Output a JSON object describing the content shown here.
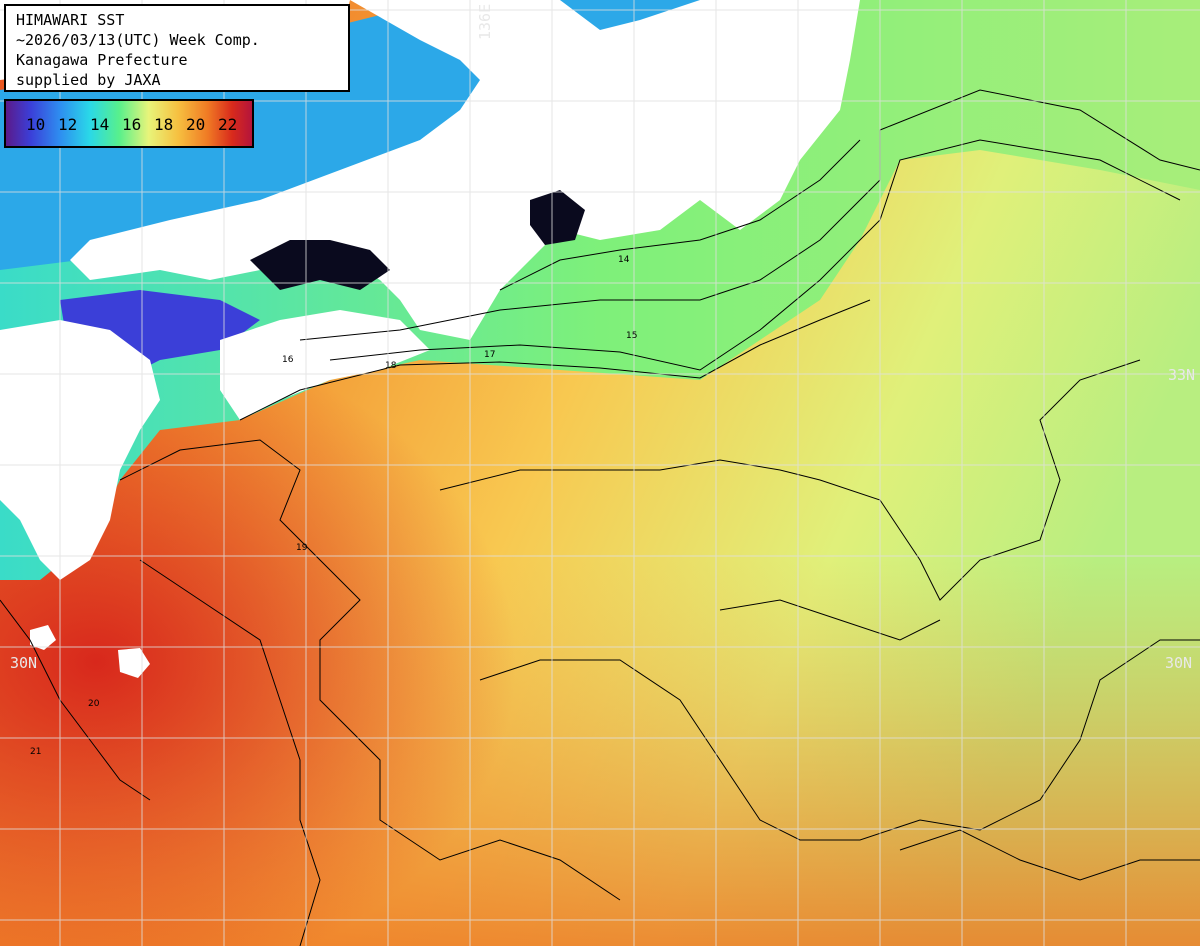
{
  "title": {
    "lines": [
      "HIMAWARI SST",
      "~2026/03/13(UTC) Week Comp.",
      "Kanagawa Prefecture",
      "supplied by JAXA"
    ]
  },
  "legend": {
    "ticks": [
      "10",
      "12",
      "14",
      "16",
      "18",
      "20",
      "22"
    ],
    "colors": [
      "#5b1a8a",
      "#3b3fd8",
      "#2e8ef0",
      "#2ad8e8",
      "#58f08c",
      "#e8f47a",
      "#f6c040",
      "#f07a24",
      "#d82a1c",
      "#b4143c"
    ]
  },
  "grid_labels": {
    "left_30n": "30N",
    "right_30n": "30N",
    "right_33n": "33N",
    "top_136e": "136E"
  },
  "contour_labels": {
    "c14": "14",
    "c15": "15",
    "c16": "16",
    "c17": "17",
    "c18": "18",
    "c19": "19",
    "c20": "20",
    "c21": "21"
  },
  "colors": {
    "land": "#ffffff",
    "sea_warm": "#f08a2a",
    "sea_cool": "#44d8b8",
    "coastal_cold": "#3a3ad8",
    "contour": "#000000",
    "grid": "#e0e0e0"
  }
}
